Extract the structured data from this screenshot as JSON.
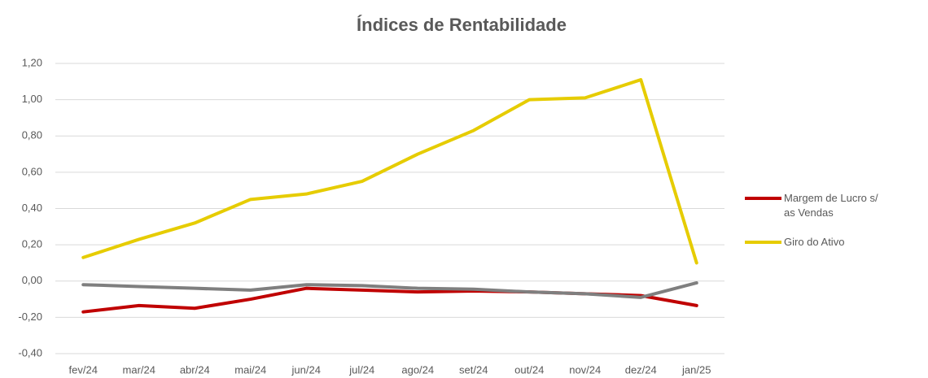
{
  "chart_data": {
    "type": "line",
    "title": "Índices de Rentabilidade",
    "categories": [
      "fev/24",
      "mar/24",
      "abr/24",
      "mai/24",
      "jun/24",
      "jul/24",
      "ago/24",
      "set/24",
      "out/24",
      "nov/24",
      "dez/24",
      "jan/25"
    ],
    "series": [
      {
        "name": "Margem de Lucro s/ as Vendas",
        "color": "#c00000",
        "values": [
          -0.17,
          -0.135,
          -0.15,
          -0.1,
          -0.04,
          -0.05,
          -0.06,
          -0.055,
          -0.06,
          -0.07,
          -0.08,
          -0.135
        ]
      },
      {
        "name": "Giro do Ativo",
        "color": "#e6cc00",
        "values": [
          0.13,
          0.23,
          0.32,
          0.45,
          0.48,
          0.55,
          0.7,
          0.83,
          1.0,
          1.01,
          1.11,
          0.1
        ]
      },
      {
        "color": "#7f7f7f",
        "values": [
          -0.02,
          -0.03,
          -0.04,
          -0.05,
          -0.02,
          -0.025,
          -0.04,
          -0.045,
          -0.06,
          -0.07,
          -0.09,
          -0.01
        ]
      }
    ],
    "ylim": [
      -0.4,
      1.2
    ],
    "yticks": [
      {
        "value": -0.4,
        "label": "-0,40"
      },
      {
        "value": -0.2,
        "label": "-0,20"
      },
      {
        "value": 0,
        "label": "0,00"
      },
      {
        "value": 0.2,
        "label": "0,20"
      },
      {
        "value": 0.4,
        "label": "0,40"
      },
      {
        "value": 0.6,
        "label": "0,60"
      },
      {
        "value": 0.8,
        "label": "0,80"
      },
      {
        "value": 1.0,
        "label": "1,00"
      },
      {
        "value": 1.2,
        "label": "1,20"
      }
    ],
    "grid": true,
    "legend": "right"
  }
}
